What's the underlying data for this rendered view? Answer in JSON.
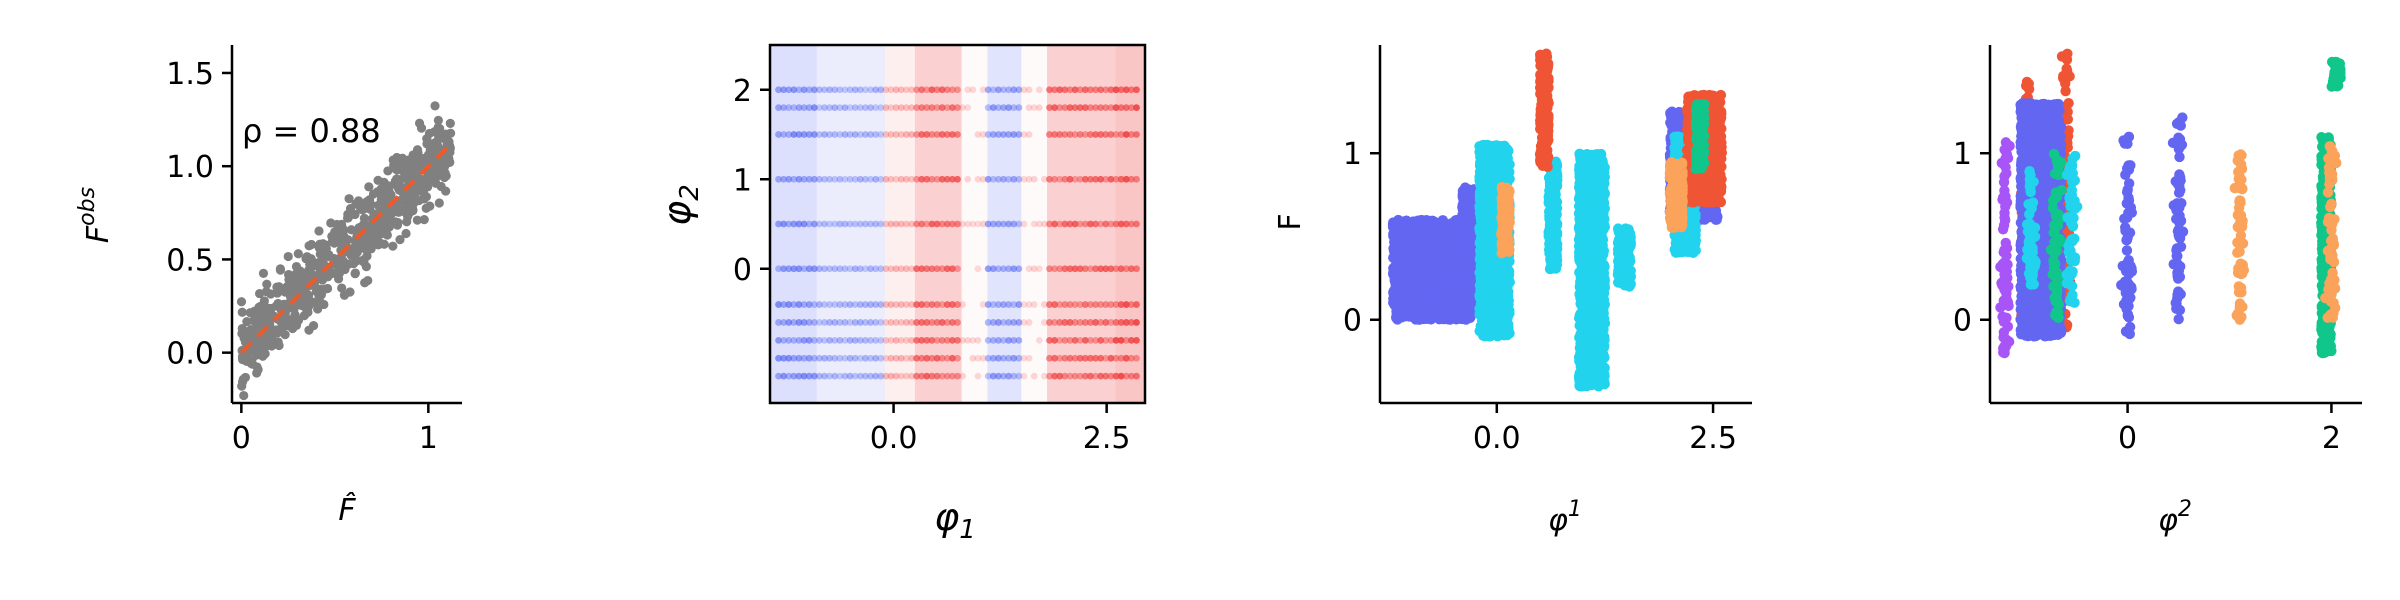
{
  "colors": {
    "scatter_gray": "#808080",
    "fit_line": "#f05a28",
    "blue": "#6366f1",
    "cyan": "#22d3ee",
    "red": "#ef5534",
    "orange": "#fba25b",
    "green": "#10c68a",
    "purple": "#a855f7",
    "heat_low": "#4a5cf0",
    "heat_high": "#f04040"
  },
  "chart_data": [
    {
      "type": "scatter",
      "xlabel": "F̂",
      "ylabel": "F",
      "ylabel_sup": "obs",
      "annotation": "ρ = 0.88",
      "xlim": [
        -0.05,
        1.18
      ],
      "ylim": [
        -0.27,
        1.65
      ],
      "xticks": [
        0,
        1
      ],
      "xtick_labels": [
        "0",
        "1"
      ],
      "yticks": [
        0.0,
        0.5,
        1.0,
        1.5
      ],
      "ytick_labels": [
        "0.0",
        "0.5",
        "1.0",
        "1.5"
      ],
      "fit_line": {
        "x": [
          0.0,
          1.1
        ],
        "y": [
          0.0,
          1.1
        ]
      },
      "points": {
        "x_range": [
          0.0,
          1.12
        ],
        "n": 700,
        "slope": 1.0,
        "noise_sd": 0.1
      },
      "grid": false
    },
    {
      "type": "heatmap",
      "xlabel": "φ",
      "xlabel_sub": "1",
      "ylabel": "φ",
      "ylabel_sub": "2",
      "xlim": [
        -1.45,
        2.95
      ],
      "ylim": [
        -1.5,
        2.5
      ],
      "xticks": [
        0.0,
        2.5
      ],
      "xtick_labels": [
        "0.0",
        "2.5"
      ],
      "yticks": [
        0,
        1,
        2
      ],
      "ytick_labels": [
        "0",
        "1",
        "2"
      ],
      "x_bands": [
        {
          "from": -1.45,
          "to": -0.9,
          "value": -0.35
        },
        {
          "from": -0.9,
          "to": -0.1,
          "value": -0.2
        },
        {
          "from": -0.1,
          "to": 0.25,
          "value": 0.15
        },
        {
          "from": 0.25,
          "to": 0.8,
          "value": 0.45
        },
        {
          "from": 0.8,
          "to": 1.1,
          "value": 0.05
        },
        {
          "from": 1.1,
          "to": 1.5,
          "value": -0.3
        },
        {
          "from": 1.5,
          "to": 1.8,
          "value": 0.05
        },
        {
          "from": 1.8,
          "to": 2.6,
          "value": 0.45
        },
        {
          "from": 2.6,
          "to": 2.95,
          "value": 0.55
        }
      ],
      "sample_rows": [
        -1.2,
        -1.0,
        -0.8,
        -0.6,
        -0.4,
        0.0,
        0.5,
        1.0,
        1.5,
        1.8,
        2.0
      ],
      "grid": false
    },
    {
      "type": "scatter",
      "xlabel": "φ",
      "xlabel_sup": "1",
      "ylabel": "F",
      "xlim": [
        -1.35,
        2.95
      ],
      "ylim": [
        -0.5,
        1.65
      ],
      "xticks": [
        0.0,
        2.5
      ],
      "xtick_labels": [
        "0.0",
        "2.5"
      ],
      "yticks": [
        0,
        1
      ],
      "ytick_labels": [
        "0",
        "1"
      ],
      "series": [
        {
          "color_key": "blue",
          "clusters": [
            [
              -1.2,
              -0.3,
              0.0,
              0.6
            ],
            [
              -0.4,
              -0.15,
              0.1,
              0.8
            ],
            [
              2.0,
              2.55,
              0.6,
              1.25
            ]
          ]
        },
        {
          "color_key": "cyan",
          "clusters": [
            [
              -0.2,
              0.15,
              -0.1,
              1.05
            ],
            [
              0.6,
              0.7,
              0.3,
              0.95
            ],
            [
              0.95,
              1.25,
              -0.4,
              1.0
            ],
            [
              1.4,
              1.55,
              0.2,
              0.55
            ],
            [
              2.05,
              2.3,
              0.4,
              1.1
            ]
          ]
        },
        {
          "color_key": "red",
          "clusters": [
            [
              0.5,
              0.6,
              0.9,
              1.6
            ],
            [
              2.2,
              2.6,
              0.7,
              1.35
            ]
          ]
        },
        {
          "color_key": "orange",
          "clusters": [
            [
              0.05,
              0.15,
              0.4,
              0.8
            ],
            [
              2.0,
              2.15,
              0.55,
              0.95
            ]
          ]
        },
        {
          "color_key": "green",
          "clusters": [
            [
              2.3,
              2.4,
              0.9,
              1.3
            ]
          ]
        }
      ],
      "grid": false
    },
    {
      "type": "scatter",
      "xlabel": "φ",
      "xlabel_sup": "2",
      "xlim": [
        -1.35,
        2.3
      ],
      "ylim": [
        -0.5,
        1.65
      ],
      "xticks": [
        0,
        2
      ],
      "xtick_labels": [
        "0",
        "2"
      ],
      "yticks": [
        0,
        1
      ],
      "ytick_labels": [
        "0",
        "1"
      ],
      "series": [
        {
          "color_key": "purple",
          "clusters": [
            [
              -1.2,
              -1.2,
              -0.2,
              1.1
            ]
          ]
        },
        {
          "color_key": "red",
          "clusters": [
            [
              -1.0,
              -1.0,
              -0.1,
              1.45
            ],
            [
              -0.6,
              -0.6,
              -0.05,
              1.6
            ],
            [
              -0.8,
              -0.8,
              0.0,
              1.3
            ]
          ]
        },
        {
          "color_key": "blue",
          "clusters": [
            [
              -1.05,
              -0.65,
              -0.1,
              1.3
            ],
            [
              0.0,
              0.0,
              -0.1,
              1.1
            ],
            [
              0.5,
              0.5,
              0.0,
              1.25
            ]
          ]
        },
        {
          "color_key": "green",
          "clusters": [
            [
              -0.7,
              -0.7,
              0.0,
              1.0
            ],
            [
              1.9,
              2.0,
              -0.2,
              1.1
            ],
            [
              2.05,
              2.05,
              1.4,
              1.55
            ]
          ]
        },
        {
          "color_key": "cyan",
          "clusters": [
            [
              -0.95,
              -0.95,
              0.2,
              0.9
            ],
            [
              -0.55,
              -0.55,
              0.1,
              1.0
            ]
          ]
        },
        {
          "color_key": "orange",
          "clusters": [
            [
              1.1,
              1.1,
              0.0,
              1.0
            ],
            [
              2.0,
              2.0,
              0.0,
              1.05
            ]
          ]
        }
      ],
      "grid": false
    }
  ]
}
